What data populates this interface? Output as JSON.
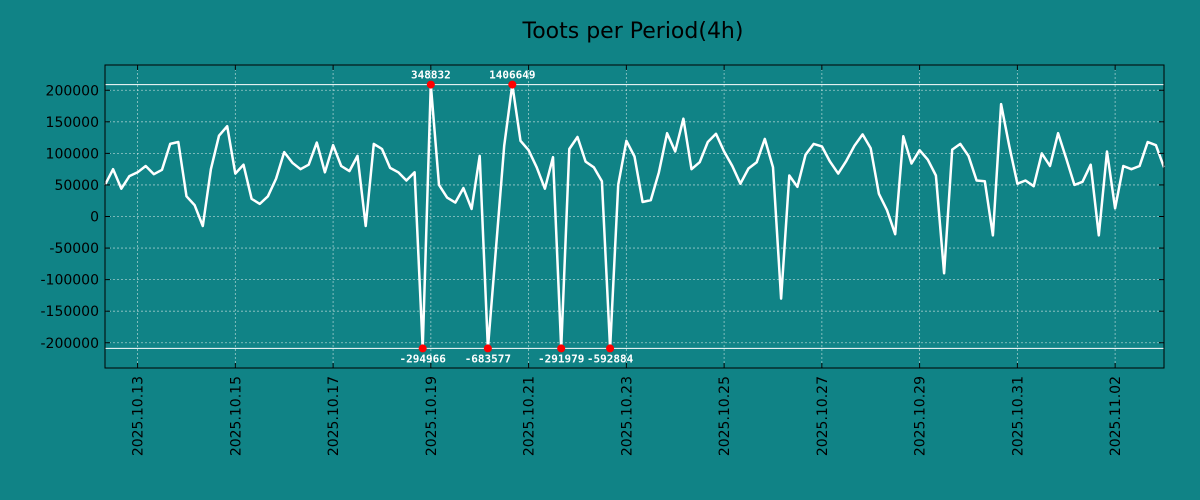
{
  "chart_data": {
    "type": "line",
    "title": "Toots per Period(4h)",
    "xlabel": "",
    "ylabel": "",
    "x_tick_labels": [
      "2025.10.13",
      "2025.10.15",
      "2025.10.17",
      "2025.10.19",
      "2025.10.21",
      "2025.10.23",
      "2025.10.25",
      "2025.10.27",
      "2025.10.29",
      "2025.10.31",
      "2025.11.02"
    ],
    "x_tick_positions": [
      4,
      16,
      28,
      40,
      52,
      64,
      76,
      88,
      100,
      112,
      124
    ],
    "x_range": [
      0,
      130
    ],
    "y_ticks": [
      200000,
      150000,
      100000,
      50000,
      0,
      -50000,
      -100000,
      -150000,
      -200000
    ],
    "y_tick_labels": [
      "200000",
      "150000",
      "100000",
      "50000",
      "0",
      "-50000",
      "-100000",
      "-150000",
      "-200000"
    ],
    "ylim": [
      -240000,
      240000
    ],
    "clip_bounds": [
      -209000,
      209000
    ],
    "grid": true,
    "series": [
      {
        "name": "Toots per Period(4h)",
        "color": "#ffffff",
        "values": [
          50000,
          75000,
          44000,
          64000,
          70000,
          80000,
          67000,
          74000,
          115000,
          118000,
          32000,
          18000,
          -15000,
          75000,
          128000,
          143000,
          68000,
          82000,
          28000,
          20000,
          32000,
          60000,
          102000,
          85000,
          75000,
          82000,
          117000,
          70000,
          113000,
          80000,
          72000,
          96000,
          -15000,
          115000,
          107000,
          77000,
          70000,
          57000,
          70000,
          -209000,
          209000,
          50000,
          30000,
          22000,
          45000,
          12000,
          96000,
          -209000,
          -50000,
          112000,
          209000,
          120000,
          105000,
          78000,
          44000,
          94000,
          -209000,
          107000,
          126000,
          87000,
          78000,
          56000,
          -209000,
          50000,
          120000,
          95000,
          23000,
          26000,
          70000,
          132000,
          103000,
          155000,
          75000,
          86000,
          118000,
          131000,
          103000,
          80000,
          52000,
          76000,
          86000,
          123000,
          78000,
          -130000,
          65000,
          47000,
          98000,
          115000,
          111000,
          87000,
          68000,
          88000,
          112000,
          130000,
          108000,
          36000,
          10000,
          -28000,
          127000,
          84000,
          105000,
          90000,
          65000,
          -90000,
          106000,
          115000,
          96000,
          57000,
          56000,
          -30000,
          178000,
          112000,
          52000,
          57000,
          48000,
          100000,
          80000,
          132000,
          92000,
          50000,
          55000,
          82000,
          -30000,
          103000,
          13000,
          80000,
          75000,
          80000,
          118000,
          113000,
          78000
        ]
      }
    ],
    "outlier_annotations": [
      {
        "x": 39,
        "value": -294966,
        "label": "-294966",
        "position": "bottom"
      },
      {
        "x": 40,
        "value": 348832,
        "label": "348832",
        "position": "top"
      },
      {
        "x": 47,
        "value": -683577,
        "label": "-683577",
        "position": "bottom"
      },
      {
        "x": 50,
        "value": 1406649,
        "label": "1406649",
        "position": "top"
      },
      {
        "x": 56,
        "value": -291979,
        "label": "-291979",
        "position": "bottom"
      },
      {
        "x": 62,
        "value": -592884,
        "label": "-592884",
        "position": "bottom"
      }
    ],
    "colors": {
      "background": "#108386",
      "line": "#ffffff",
      "grid": "#d8e8e8",
      "bound_lines": "#ffffff",
      "markers": "#ff0000",
      "axes": "#000000"
    }
  }
}
